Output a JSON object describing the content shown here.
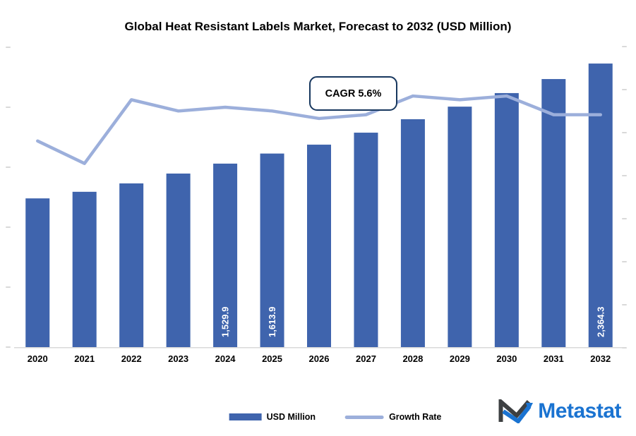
{
  "chart": {
    "title": "Global Heat Resistant Labels Market, Forecast to 2032 (USD Million)",
    "cagr_label": "CAGR 5.6%"
  },
  "legend": {
    "bar_label": "USD Million",
    "line_label": "Growth Rate"
  },
  "logo": {
    "text": "Metastat"
  },
  "colors": {
    "bar": "#3f64ad",
    "line": "#9cafdb",
    "cagr_border": "#17375e",
    "baseline": "#d9d9d9",
    "tick_mark": "#b9b9b9",
    "logo_blue": "#1a73d1",
    "logo_dark": "#3d4042",
    "bar_label_text": "#ffffff",
    "axis_text": "#000000"
  },
  "chart_data": {
    "type": "bar",
    "subtype": "bar-line-combo",
    "title": "Global Heat Resistant Labels Market, Forecast to 2032 (USD Million)",
    "categories": [
      "2020",
      "2021",
      "2022",
      "2023",
      "2024",
      "2025",
      "2026",
      "2027",
      "2028",
      "2029",
      "2030",
      "2031",
      "2032"
    ],
    "series": [
      {
        "name": "USD Million",
        "type": "bar",
        "values": [
          1240,
          1295,
          1365,
          1447,
          1529.9,
          1613.9,
          1688,
          1788,
          1900,
          2005,
          2118,
          2235,
          2364.3
        ],
        "data_labels": [
          "",
          "",
          "",
          "",
          "1,529.9",
          "1,613.9",
          "",
          "",
          "",
          "",
          "",
          "",
          "2,364.3"
        ]
      },
      {
        "name": "Growth Rate",
        "type": "line",
        "unit": "%",
        "values": [
          5.5,
          4.9,
          6.6,
          6.3,
          6.4,
          6.3,
          6.1,
          6.2,
          6.7,
          6.6,
          6.7,
          6.2,
          6.2
        ]
      }
    ],
    "annotations": [
      {
        "text": "CAGR 5.6%"
      }
    ],
    "y_left": {
      "min": 0,
      "max": 2500,
      "labels_visible": false
    },
    "y_right": {
      "min": 0,
      "max": 8,
      "labels_visible": false
    },
    "axis_marks": {
      "left_count": 6,
      "right_count": 8
    },
    "grid": false,
    "legend_position": "bottom"
  }
}
